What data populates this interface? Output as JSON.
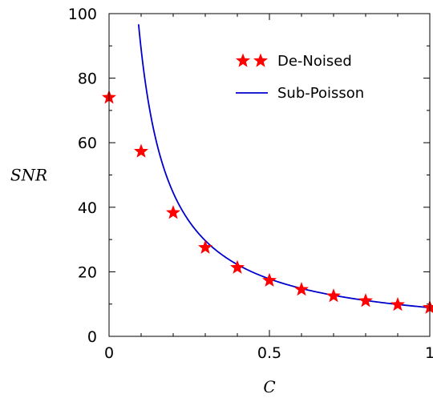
{
  "chart_data": {
    "type": "scatter",
    "xlabel": "C",
    "ylabel": "SNR",
    "xlim": [
      0,
      1
    ],
    "ylim": [
      0,
      100
    ],
    "x_ticks": [
      {
        "value": 0,
        "label": "0"
      },
      {
        "value": 0.5,
        "label": "0.5"
      },
      {
        "value": 1,
        "label": "1"
      }
    ],
    "y_ticks": [
      {
        "value": 0,
        "label": "0"
      },
      {
        "value": 20,
        "label": "20"
      },
      {
        "value": 40,
        "label": "40"
      },
      {
        "value": 60,
        "label": "60"
      },
      {
        "value": 80,
        "label": "80"
      },
      {
        "value": 100,
        "label": "100"
      }
    ],
    "legend_position": "top-right",
    "series": [
      {
        "name": "De-Noised",
        "kind": "markers",
        "marker": "star",
        "color": "#ff0000",
        "x": [
          0,
          0.1,
          0.2,
          0.3,
          0.4,
          0.5,
          0.6,
          0.7,
          0.8,
          0.9,
          1.0
        ],
        "y": [
          74,
          57.3,
          38.3,
          27.5,
          21.3,
          17.3,
          14.5,
          12.5,
          11.0,
          9.8,
          8.9
        ]
      },
      {
        "name": "Sub-Poisson",
        "kind": "line",
        "color": "#0000cc",
        "formula": "y = 8.9 / x",
        "x_range": [
          0.089,
          1.0
        ]
      }
    ]
  }
}
